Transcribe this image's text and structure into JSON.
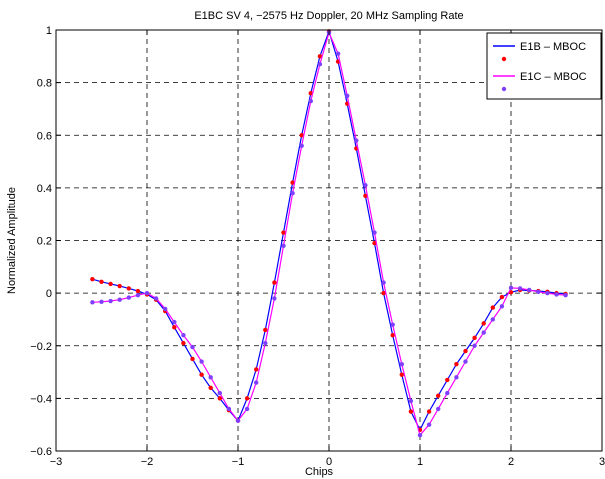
{
  "chart_data": {
    "type": "line",
    "title": "E1BC SV 4, −2575 Hz Doppler, 20 MHz Sampling Rate",
    "xlabel": "Chips",
    "ylabel": "Normalized Amplitude",
    "xlim": [
      -3,
      3
    ],
    "ylim": [
      -0.6,
      1.0
    ],
    "xticks": [
      -3,
      -2,
      -1,
      0,
      1,
      2,
      3
    ],
    "xtick_labels": [
      "−3",
      "−2",
      "−1",
      "0",
      "1",
      "2",
      "3"
    ],
    "yticks": [
      -0.6,
      -0.4,
      -0.2,
      0,
      0.2,
      0.4,
      0.6,
      0.8,
      1.0
    ],
    "ytick_labels": [
      "−0.6",
      "−0.4",
      "−0.2",
      "0",
      "0.2",
      "0.4",
      "0.6",
      "0.8",
      "1"
    ],
    "grid": true,
    "legend_position": "top-right",
    "series": [
      {
        "name": "E1B – MBOC",
        "line_color": "#0000ff",
        "marker_color": "#ff0000",
        "x": [
          -2.6,
          -2.5,
          -2.4,
          -2.3,
          -2.2,
          -2.1,
          -2.0,
          -1.9,
          -1.8,
          -1.7,
          -1.6,
          -1.5,
          -1.4,
          -1.3,
          -1.2,
          -1.1,
          -1.0,
          -0.9,
          -0.8,
          -0.7,
          -0.6,
          -0.5,
          -0.4,
          -0.3,
          -0.2,
          -0.1,
          0.0,
          0.1,
          0.2,
          0.3,
          0.4,
          0.5,
          0.6,
          0.7,
          0.8,
          0.9,
          1.0,
          1.1,
          1.2,
          1.3,
          1.4,
          1.5,
          1.6,
          1.7,
          1.8,
          1.9,
          2.0,
          2.1,
          2.2,
          2.3,
          2.4,
          2.5,
          2.6
        ],
        "y": [
          0.053,
          0.043,
          0.035,
          0.027,
          0.018,
          0.008,
          -0.005,
          -0.025,
          -0.068,
          -0.13,
          -0.19,
          -0.25,
          -0.31,
          -0.36,
          -0.4,
          -0.445,
          -0.485,
          -0.4,
          -0.29,
          -0.14,
          0.04,
          0.23,
          0.42,
          0.6,
          0.76,
          0.9,
          0.995,
          0.88,
          0.72,
          0.55,
          0.37,
          0.19,
          0.0,
          -0.16,
          -0.31,
          -0.45,
          -0.52,
          -0.45,
          -0.39,
          -0.33,
          -0.27,
          -0.22,
          -0.17,
          -0.115,
          -0.055,
          -0.015,
          0.003,
          0.012,
          0.01,
          0.008,
          0.005,
          0.0,
          -0.003
        ]
      },
      {
        "name": "E1C – MBOC",
        "line_color": "#ff00ff",
        "marker_color": "#7f3fff",
        "x": [
          -2.6,
          -2.5,
          -2.4,
          -2.3,
          -2.2,
          -2.1,
          -2.0,
          -1.9,
          -1.8,
          -1.7,
          -1.6,
          -1.5,
          -1.4,
          -1.3,
          -1.2,
          -1.1,
          -1.0,
          -0.9,
          -0.8,
          -0.7,
          -0.6,
          -0.5,
          -0.4,
          -0.3,
          -0.2,
          -0.1,
          0.0,
          0.1,
          0.2,
          0.3,
          0.4,
          0.5,
          0.6,
          0.7,
          0.8,
          0.9,
          1.0,
          1.1,
          1.2,
          1.3,
          1.4,
          1.5,
          1.6,
          1.7,
          1.8,
          1.9,
          2.0,
          2.1,
          2.2,
          2.3,
          2.4,
          2.5,
          2.6
        ],
        "y": [
          -0.035,
          -0.033,
          -0.03,
          -0.025,
          -0.017,
          -0.008,
          -0.0,
          -0.02,
          -0.06,
          -0.11,
          -0.16,
          -0.205,
          -0.26,
          -0.32,
          -0.38,
          -0.44,
          -0.485,
          -0.44,
          -0.34,
          -0.19,
          -0.02,
          0.18,
          0.38,
          0.56,
          0.73,
          0.87,
          0.99,
          0.91,
          0.75,
          0.58,
          0.41,
          0.23,
          0.04,
          -0.12,
          -0.27,
          -0.41,
          -0.54,
          -0.5,
          -0.44,
          -0.38,
          -0.32,
          -0.26,
          -0.2,
          -0.15,
          -0.1,
          -0.05,
          0.02,
          0.018,
          0.012,
          0.005,
          0.0,
          -0.005,
          -0.008
        ]
      }
    ]
  }
}
